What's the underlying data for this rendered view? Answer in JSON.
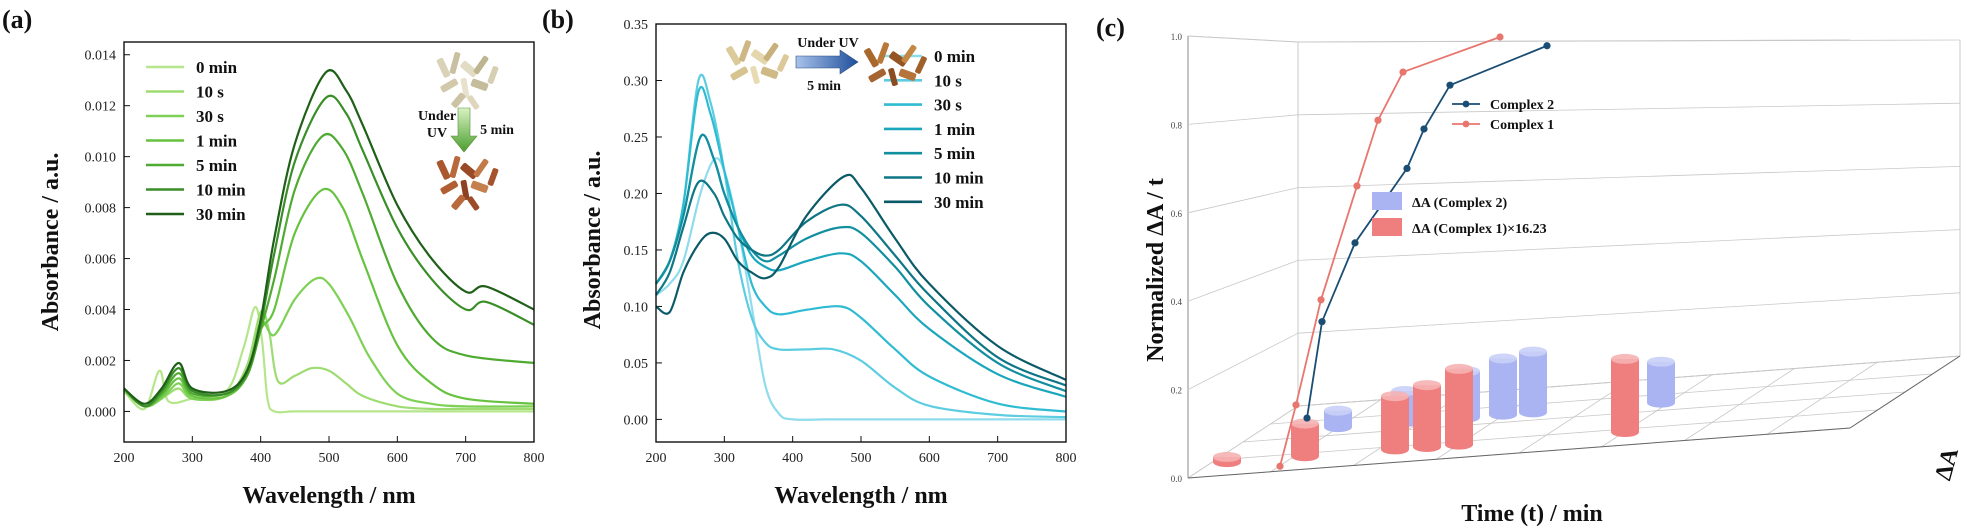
{
  "chart_data": [
    {
      "panel_label": "(a)",
      "type": "line",
      "xlabel": "Wavelength / nm",
      "ylabel": "Absorbance / a.u.",
      "xlim": [
        200,
        800
      ],
      "ylim": [
        -0.0012,
        0.0145
      ],
      "xticks": [
        200,
        300,
        400,
        500,
        600,
        700,
        800
      ],
      "yticks": [
        0.0,
        0.002,
        0.004,
        0.006,
        0.008,
        0.01,
        0.012,
        0.014
      ],
      "ytick_labels": [
        "0.000",
        "0.002",
        "0.004",
        "0.006",
        "0.008",
        "0.010",
        "0.012",
        "0.014"
      ],
      "legend_position": "upper-left",
      "annotation": {
        "arrow_label_left": "Under\nUV",
        "arrow_label_right": "5 min"
      },
      "series": [
        {
          "name": "0 min",
          "color": "#b5e68c",
          "x": [
            200,
            230,
            252,
            265,
            300,
            350,
            375,
            392,
            402,
            410,
            420,
            450,
            500,
            550,
            600,
            700,
            800
          ],
          "y": [
            0.0008,
            0.0001,
            0.0016,
            0.0004,
            0.0005,
            0.0008,
            0.0025,
            0.0041,
            0.0028,
            0.0005,
            0.0,
            0.0,
            0.0,
            0.0,
            0.0,
            0.0,
            0.0
          ]
        },
        {
          "name": "10 s",
          "color": "#9edc72",
          "x": [
            200,
            230,
            260,
            280,
            300,
            350,
            380,
            400,
            412,
            425,
            450,
            475,
            500,
            525,
            550,
            600,
            650,
            700,
            800
          ],
          "y": [
            0.0008,
            0.0002,
            0.0006,
            0.0009,
            0.0005,
            0.0006,
            0.0018,
            0.0039,
            0.0032,
            0.0012,
            0.0014,
            0.0017,
            0.0016,
            0.0011,
            0.0006,
            0.0002,
            0.0001,
            0.0001,
            0.0001
          ]
        },
        {
          "name": "30 s",
          "color": "#7ed156",
          "x": [
            200,
            230,
            255,
            280,
            300,
            350,
            380,
            400,
            420,
            450,
            480,
            500,
            530,
            560,
            600,
            650,
            700,
            800
          ],
          "y": [
            0.0008,
            0.0002,
            0.0005,
            0.0011,
            0.0005,
            0.0006,
            0.0015,
            0.0035,
            0.003,
            0.0044,
            0.0052,
            0.005,
            0.0037,
            0.0021,
            0.0007,
            0.0003,
            0.0002,
            0.0002
          ]
        },
        {
          "name": "1 min",
          "color": "#66c23f",
          "x": [
            200,
            230,
            255,
            280,
            300,
            350,
            380,
            400,
            420,
            450,
            490,
            520,
            550,
            600,
            650,
            700,
            800
          ],
          "y": [
            0.0009,
            0.0002,
            0.0006,
            0.0013,
            0.0006,
            0.0006,
            0.0014,
            0.0032,
            0.004,
            0.007,
            0.0087,
            0.008,
            0.0059,
            0.0026,
            0.0011,
            0.0005,
            0.0003
          ]
        },
        {
          "name": "5 min",
          "color": "#4faa32",
          "x": [
            200,
            230,
            255,
            280,
            300,
            350,
            380,
            400,
            420,
            450,
            490,
            520,
            550,
            600,
            650,
            700,
            800
          ],
          "y": [
            0.0009,
            0.0002,
            0.0007,
            0.0015,
            0.0007,
            0.0007,
            0.0014,
            0.0032,
            0.0052,
            0.0087,
            0.0108,
            0.0103,
            0.0085,
            0.005,
            0.0029,
            0.0022,
            0.0019
          ]
        },
        {
          "name": "10 min",
          "color": "#3a8e28",
          "x": [
            200,
            230,
            255,
            280,
            300,
            350,
            380,
            400,
            420,
            450,
            495,
            525,
            550,
            600,
            650,
            700,
            730,
            800
          ],
          "y": [
            0.0009,
            0.0002,
            0.0008,
            0.0017,
            0.0008,
            0.0007,
            0.0015,
            0.0034,
            0.0062,
            0.0098,
            0.0123,
            0.0117,
            0.0102,
            0.0072,
            0.0052,
            0.004,
            0.0043,
            0.0034
          ]
        },
        {
          "name": "30 min",
          "color": "#1f5f17",
          "x": [
            200,
            230,
            255,
            280,
            300,
            350,
            380,
            400,
            420,
            450,
            495,
            525,
            550,
            600,
            650,
            700,
            730,
            800
          ],
          "y": [
            0.0009,
            0.0003,
            0.0009,
            0.0019,
            0.0009,
            0.0008,
            0.0016,
            0.0036,
            0.0068,
            0.0105,
            0.0133,
            0.0126,
            0.0112,
            0.0081,
            0.006,
            0.0047,
            0.0049,
            0.004
          ]
        }
      ]
    },
    {
      "panel_label": "(b)",
      "type": "line",
      "xlabel": "Wavelength / nm",
      "ylabel": "Absorbance / a.u.",
      "xlim": [
        200,
        800
      ],
      "ylim": [
        -0.02,
        0.35
      ],
      "xticks": [
        200,
        300,
        400,
        500,
        600,
        700,
        800
      ],
      "yticks": [
        0.0,
        0.05,
        0.1,
        0.15,
        0.2,
        0.25,
        0.3,
        0.35
      ],
      "ytick_labels": [
        "0.00",
        "0.05",
        "0.10",
        "0.15",
        "0.20",
        "0.25",
        "0.30",
        "0.35"
      ],
      "legend_position": "upper-right",
      "annotation": {
        "arrow_label_top": "Under UV",
        "arrow_label_bottom": "5 min"
      },
      "series": [
        {
          "name": "0 min",
          "color": "#8fdcec",
          "x": [
            200,
            220,
            240,
            265,
            285,
            300,
            320,
            340,
            360,
            380,
            400,
            450,
            500,
            600,
            700,
            800
          ],
          "y": [
            0.11,
            0.12,
            0.14,
            0.2,
            0.23,
            0.22,
            0.17,
            0.1,
            0.03,
            0.005,
            0.0,
            0.0,
            0.0,
            0.0,
            0.0,
            0.0
          ]
        },
        {
          "name": "10 s",
          "color": "#5ccde0",
          "x": [
            200,
            220,
            240,
            262,
            280,
            300,
            320,
            340,
            360,
            380,
            420,
            460,
            500,
            550,
            600,
            700,
            800
          ],
          "y": [
            0.12,
            0.14,
            0.19,
            0.3,
            0.28,
            0.22,
            0.14,
            0.09,
            0.068,
            0.062,
            0.062,
            0.062,
            0.052,
            0.028,
            0.012,
            0.004,
            0.002
          ]
        },
        {
          "name": "30 s",
          "color": "#2fbcd2",
          "x": [
            200,
            220,
            240,
            262,
            280,
            300,
            320,
            340,
            360,
            380,
            420,
            470,
            500,
            550,
            600,
            700,
            800
          ],
          "y": [
            0.12,
            0.14,
            0.19,
            0.29,
            0.27,
            0.22,
            0.17,
            0.12,
            0.1,
            0.093,
            0.097,
            0.1,
            0.09,
            0.062,
            0.038,
            0.014,
            0.007
          ]
        },
        {
          "name": "1 min",
          "color": "#1aa6bd",
          "x": [
            200,
            220,
            240,
            265,
            285,
            300,
            320,
            340,
            360,
            380,
            420,
            470,
            500,
            550,
            600,
            700,
            800
          ],
          "y": [
            0.12,
            0.14,
            0.18,
            0.25,
            0.23,
            0.2,
            0.17,
            0.145,
            0.135,
            0.132,
            0.14,
            0.147,
            0.14,
            0.11,
            0.08,
            0.04,
            0.02
          ]
        },
        {
          "name": "5 min",
          "color": "#128f9f",
          "x": [
            200,
            220,
            240,
            265,
            285,
            300,
            320,
            340,
            360,
            380,
            420,
            470,
            500,
            550,
            600,
            700,
            800
          ],
          "y": [
            0.12,
            0.14,
            0.18,
            0.25,
            0.23,
            0.2,
            0.17,
            0.15,
            0.14,
            0.145,
            0.16,
            0.17,
            0.165,
            0.135,
            0.1,
            0.05,
            0.025
          ]
        },
        {
          "name": "10 min",
          "color": "#0e7685",
          "x": [
            200,
            220,
            240,
            262,
            285,
            300,
            320,
            340,
            360,
            380,
            420,
            470,
            500,
            550,
            600,
            700,
            800
          ],
          "y": [
            0.11,
            0.13,
            0.17,
            0.21,
            0.2,
            0.18,
            0.16,
            0.15,
            0.145,
            0.15,
            0.175,
            0.19,
            0.18,
            0.145,
            0.11,
            0.055,
            0.03
          ]
        },
        {
          "name": "30 min",
          "color": "#0b5a68",
          "x": [
            200,
            220,
            240,
            262,
            280,
            300,
            320,
            340,
            360,
            380,
            420,
            475,
            500,
            550,
            600,
            700,
            800
          ],
          "y": [
            0.1,
            0.095,
            0.13,
            0.155,
            0.165,
            0.16,
            0.14,
            0.13,
            0.125,
            0.135,
            0.18,
            0.215,
            0.205,
            0.16,
            0.12,
            0.065,
            0.035
          ]
        }
      ]
    },
    {
      "panel_label": "(c)",
      "type": "line",
      "xlabel": "Time (t) / min",
      "ylabel": "Normalized ΔA / t",
      "zlabel": "ΔA",
      "ylim": [
        0.0,
        1.0
      ],
      "yticks": [
        0.0,
        0.2,
        0.4,
        0.6,
        0.8,
        1.0
      ],
      "ytick_labels": [
        "0.0",
        "0.2",
        "0.4",
        "0.6",
        "0.8",
        "1.0"
      ],
      "legend_position": "upper-right",
      "series": [
        {
          "name": "Complex 2",
          "color": "#1a4d73",
          "normalized": [
            0.13,
            0.35,
            0.53,
            0.7,
            0.79,
            0.89,
            0.98
          ]
        },
        {
          "name": "Complex 1",
          "color": "#e8766e",
          "normalized": [
            0.02,
            0.16,
            0.4,
            0.66,
            0.81,
            0.92,
            1.0
          ]
        }
      ],
      "bars": [
        {
          "name": "ΔA (Complex 2)",
          "color": "#aab4f2",
          "heights": [
            0.25,
            0.47,
            0.7,
            0.85,
            0.92,
            0.62
          ]
        },
        {
          "name": "ΔA (Complex 1)×16.23",
          "color": "#ef7f7f",
          "heights": [
            0.06,
            0.38,
            0.62,
            0.72,
            0.88,
            0.85
          ]
        }
      ]
    }
  ]
}
